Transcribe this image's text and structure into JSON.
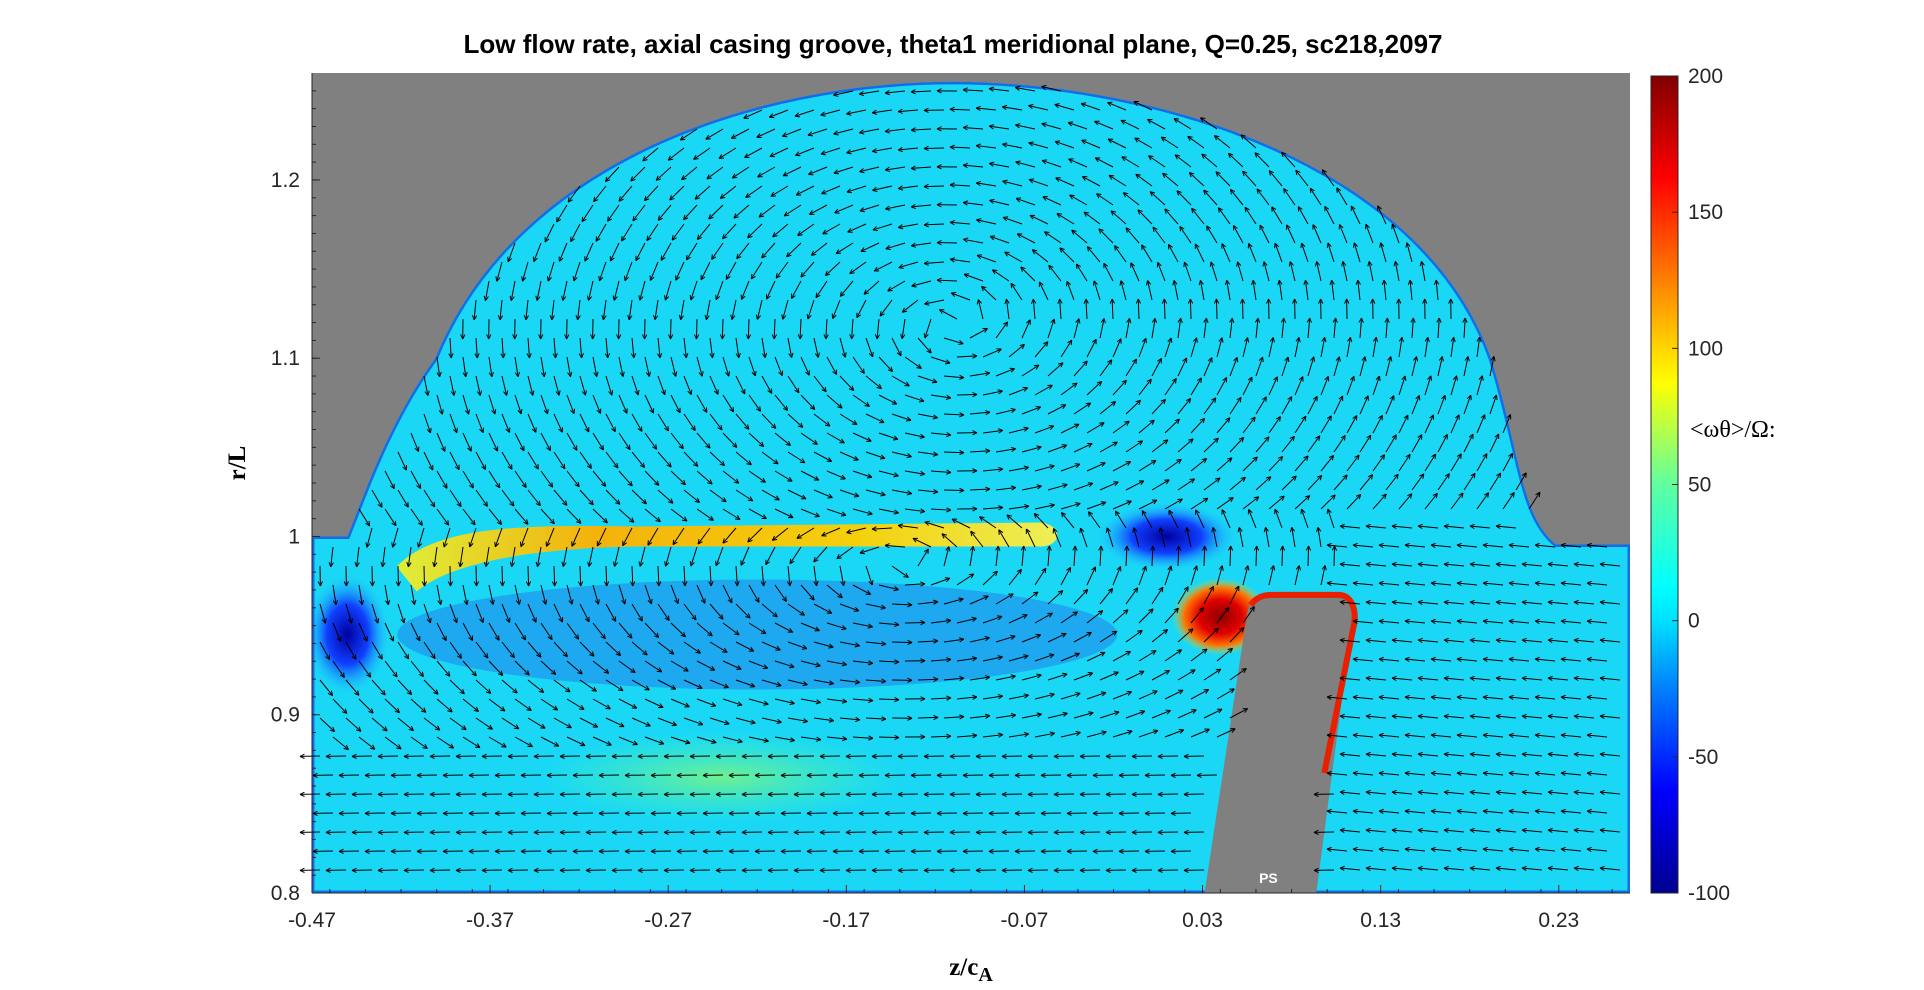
{
  "chart_data": {
    "type": "heatmap",
    "title": "Low flow rate, axial casing groove, theta1 meridional plane, Q=0.25, sc218,2097",
    "xlabel_main": "z/c",
    "xlabel_sub": "A",
    "ylabel": "r/L",
    "xlim": [
      -0.47,
      0.27
    ],
    "ylim": [
      0.8,
      1.26
    ],
    "x_ticks": [
      -0.47,
      -0.37,
      -0.27,
      -0.17,
      -0.07,
      0.03,
      0.13,
      0.23
    ],
    "x_tick_labels": [
      "-0.47",
      "-0.37",
      "-0.27",
      "-0.17",
      "-0.07",
      "0.03",
      "0.13",
      "0.23"
    ],
    "y_ticks": [
      0.8,
      0.9,
      1.0,
      1.1,
      1.2
    ],
    "y_tick_labels": [
      "0.8",
      "0.9",
      "1",
      "1.1",
      "1.2"
    ],
    "colorbar": {
      "label": "<ωθ>/Ω:",
      "range": [
        -100,
        200
      ],
      "ticks": [
        -100,
        -50,
        0,
        50,
        100,
        150,
        200
      ],
      "tick_labels": [
        "-100",
        "-50",
        "0",
        "50",
        "100",
        "150",
        "200"
      ],
      "colormap": "jet"
    },
    "blade_label": "PS",
    "grid": false,
    "legend": "colorbar-right",
    "colors": {
      "background": "#ffffff",
      "solid_region": "#808080",
      "baseline_fluid": "#1ad8f5",
      "arrows": "#000000"
    },
    "features": {
      "casing_line_r": 1.0,
      "groove_span_z": [
        -0.44,
        0.22
      ],
      "groove_peak_r": 1.255,
      "high_shear_layer": {
        "z": [
          -0.4,
          -0.06
        ],
        "r": 1.0,
        "value": 120
      },
      "tip_leakage_vortex": {
        "z": 0.03,
        "r": 0.955,
        "value": 200
      },
      "negative_core_upstream": {
        "z": -0.45,
        "r": 0.945,
        "value": -90
      },
      "negative_core_groove": {
        "z": 0.01,
        "r": 1.0,
        "value": -80
      }
    }
  }
}
